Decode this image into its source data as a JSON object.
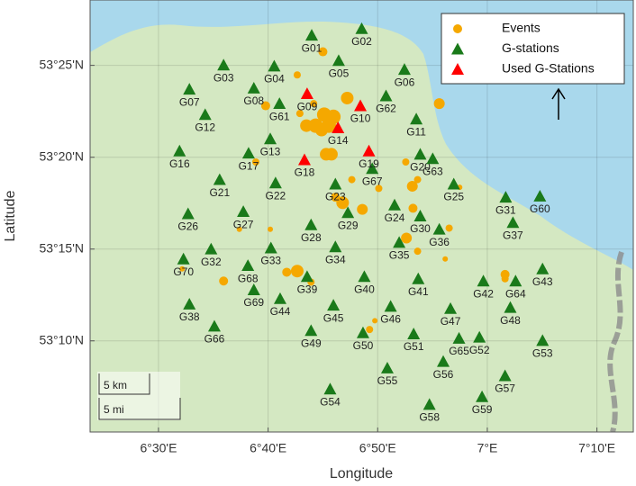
{
  "chart_data": {
    "type": "map",
    "xlabel": "Longitude",
    "ylabel": "Latitude",
    "xlim": [
      6.396,
      7.222
    ],
    "ylim": [
      53.084,
      53.476
    ],
    "xticks": [
      {
        "value": 6.5,
        "label": "6°30'E"
      },
      {
        "value": 6.6667,
        "label": "6°40'E"
      },
      {
        "value": 6.8333,
        "label": "6°50'E"
      },
      {
        "value": 7,
        "label": "7°E"
      },
      {
        "value": 7.1667,
        "label": "7°10'E"
      }
    ],
    "yticks": [
      {
        "value": 53.1667,
        "label": "53°10'N"
      },
      {
        "value": 53.25,
        "label": "53°15'N"
      },
      {
        "value": 53.3333,
        "label": "53°20'N"
      },
      {
        "value": 53.4167,
        "label": "53°25'N"
      }
    ],
    "grid": true,
    "legend": "northeast",
    "scale_bar": [
      "5 km",
      "5 mi"
    ],
    "series": [
      {
        "name": "Events",
        "color": "#f5a800",
        "x": [
          6.75,
          6.711,
          6.787,
          6.927,
          6.663,
          6.715,
          6.736,
          6.752,
          6.766,
          6.739,
          6.725,
          6.748,
          6.759,
          6.755,
          6.763,
          6.876,
          6.894,
          6.886,
          6.794,
          6.835,
          6.958,
          6.78,
          6.81,
          6.887,
          6.769,
          6.648,
          6.67,
          6.623,
          6.942,
          6.877,
          6.894,
          6.936,
          6.695,
          6.711,
          6.732,
          6.599,
          6.536,
          7.027,
          7.027,
          6.829,
          6.821
        ],
        "y": [
          53.429,
          53.408,
          53.387,
          53.382,
          53.38,
          53.373,
          53.382,
          53.372,
          53.37,
          53.362,
          53.362,
          53.358,
          53.362,
          53.336,
          53.336,
          53.329,
          53.313,
          53.307,
          53.313,
          53.305,
          53.306,
          53.292,
          53.286,
          53.287,
          53.297,
          53.329,
          53.268,
          53.268,
          53.269,
          53.26,
          53.248,
          53.241,
          53.229,
          53.23,
          53.22,
          53.221,
          53.232,
          53.227,
          53.223,
          53.185,
          53.177
        ],
        "sizes": [
          5,
          4,
          7,
          6,
          5,
          4,
          4,
          8,
          8,
          8,
          7,
          7,
          8,
          7,
          7,
          4,
          4,
          6,
          4,
          4,
          3,
          7,
          6,
          5,
          5,
          4,
          3,
          3,
          4,
          6,
          4,
          3,
          5,
          7,
          4,
          5,
          3,
          5,
          4,
          3,
          4
        ]
      },
      {
        "name": "G-stations",
        "color": "#1a7a1a",
        "labels": [
          "G01",
          "G02",
          "G03",
          "G04",
          "G05",
          "G06",
          "G07",
          "G08",
          "G61",
          "G62",
          "G11",
          "G12",
          "G13",
          "G16",
          "G17",
          "G20",
          "G63",
          "G21",
          "G22",
          "G23",
          "G67",
          "G25",
          "G24",
          "G30",
          "G29",
          "G26",
          "G27",
          "G28",
          "G31",
          "G60",
          "G37",
          "G36",
          "G35",
          "G34",
          "G33",
          "G32",
          "G70",
          "G68",
          "G39",
          "G40",
          "G41",
          "G42",
          "G64",
          "G43",
          "G69",
          "G44",
          "G45",
          "G46",
          "G47",
          "G48",
          "G38",
          "G66",
          "G49",
          "G50",
          "G51",
          "G65",
          "G52",
          "G53",
          "G55",
          "G56",
          "G57",
          "G54",
          "G58",
          "G59"
        ],
        "x": [
          6.733,
          6.809,
          6.599,
          6.676,
          6.774,
          6.874,
          6.547,
          6.645,
          6.684,
          6.846,
          6.892,
          6.571,
          6.67,
          6.532,
          6.637,
          6.898,
          6.917,
          6.593,
          6.678,
          6.769,
          6.825,
          6.949,
          6.859,
          6.898,
          6.788,
          6.545,
          6.629,
          6.732,
          7.028,
          7.08,
          7.039,
          6.927,
          6.866,
          6.769,
          6.671,
          6.58,
          6.538,
          6.636,
          6.726,
          6.813,
          6.895,
          6.994,
          7.043,
          7.084,
          6.645,
          6.685,
          6.766,
          6.853,
          6.944,
          7.035,
          6.547,
          6.585,
          6.732,
          6.811,
          6.888,
          6.957,
          6.988,
          7.084,
          6.848,
          6.933,
          7.027,
          6.761,
          6.912,
          6.992
        ],
        "y": [
          53.444,
          53.45,
          53.417,
          53.416,
          53.421,
          53.413,
          53.395,
          53.396,
          53.382,
          53.389,
          53.368,
          53.372,
          53.35,
          53.339,
          53.337,
          53.336,
          53.332,
          53.313,
          53.31,
          53.309,
          53.323,
          53.309,
          53.29,
          53.28,
          53.283,
          53.282,
          53.284,
          53.272,
          53.297,
          53.298,
          53.274,
          53.268,
          53.256,
          53.252,
          53.251,
          53.25,
          53.241,
          53.235,
          53.225,
          53.225,
          53.223,
          53.221,
          53.221,
          53.232,
          53.213,
          53.205,
          53.199,
          53.198,
          53.196,
          53.197,
          53.2,
          53.18,
          53.176,
          53.174,
          53.173,
          53.169,
          53.17,
          53.167,
          53.142,
          53.148,
          53.135,
          53.123,
          53.109,
          53.116
        ]
      },
      {
        "name": "Used G-Stations",
        "color": "#ff0000",
        "labels": [
          "G09",
          "G10",
          "G14",
          "G18",
          "G19"
        ],
        "x": [
          6.726,
          6.807,
          6.773,
          6.722,
          6.82
        ],
        "y": [
          53.391,
          53.38,
          53.36,
          53.331,
          53.339
        ]
      }
    ]
  }
}
